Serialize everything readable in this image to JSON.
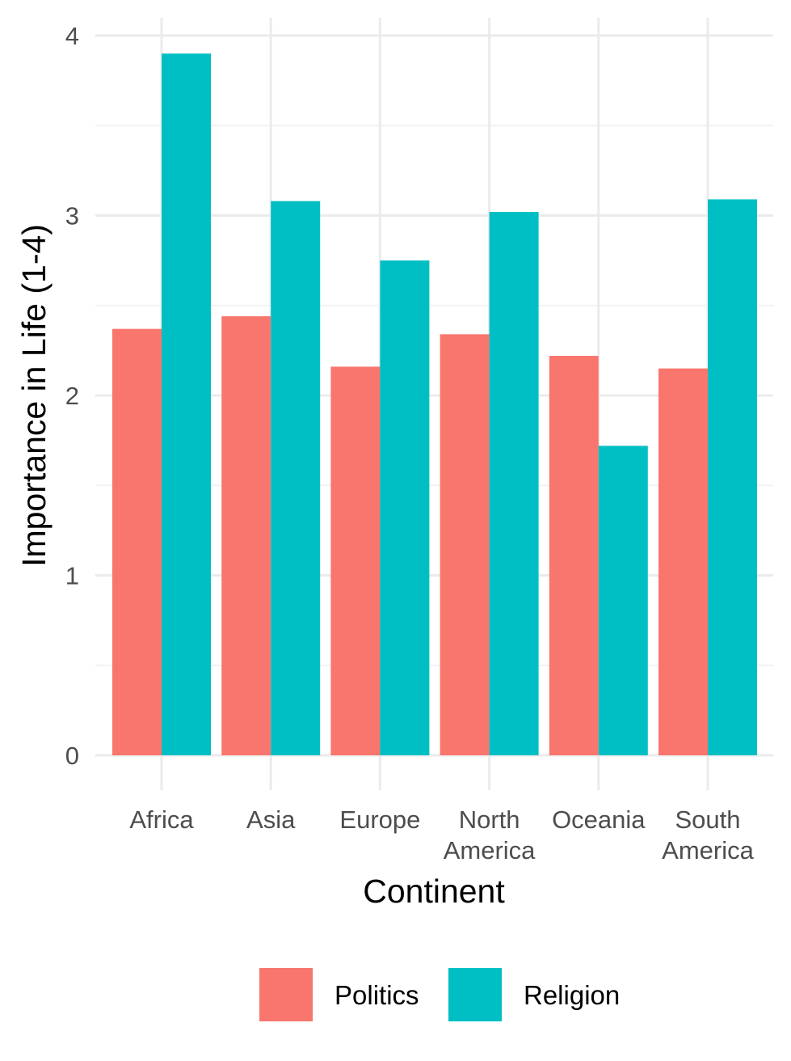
{
  "chart_data": {
    "type": "bar",
    "categories": [
      [
        "Africa"
      ],
      [
        "Asia"
      ],
      [
        "Europe"
      ],
      [
        "North",
        "America"
      ],
      [
        "Oceania"
      ],
      [
        "South",
        "America"
      ]
    ],
    "series": [
      {
        "name": "Politics",
        "color": "#F8766D",
        "values": [
          2.37,
          2.44,
          2.16,
          2.34,
          2.22,
          2.15
        ]
      },
      {
        "name": "Religion",
        "color": "#00BFC4",
        "values": [
          3.9,
          3.08,
          2.75,
          3.02,
          1.72,
          3.09
        ]
      }
    ],
    "xlabel": "Continent",
    "ylabel": "Importance in Life (1-4)",
    "ylim": [
      0,
      4
    ],
    "yticks": [
      0,
      1,
      2,
      3,
      4
    ],
    "grid": true,
    "legend_position": "bottom"
  }
}
